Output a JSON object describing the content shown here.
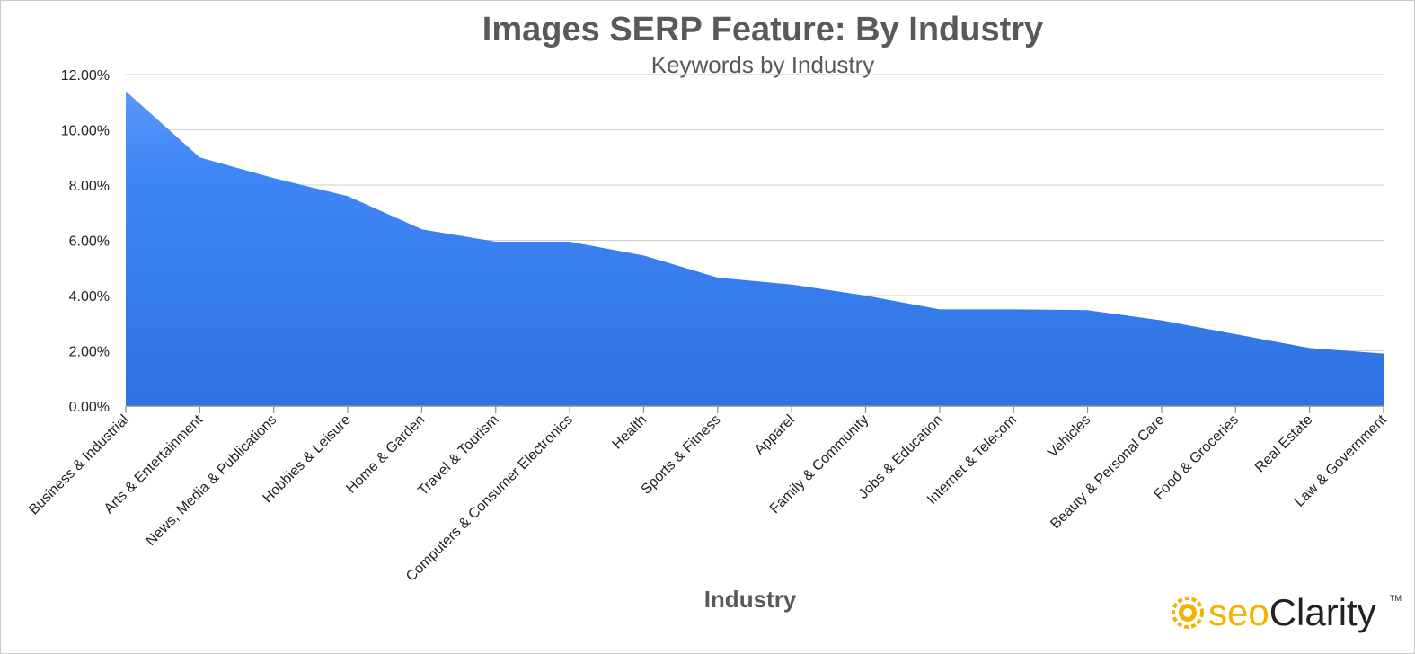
{
  "chart_data": {
    "type": "area",
    "title": "Images SERP Feature: By Industry",
    "subtitle": "Keywords by Industry",
    "xlabel": "Industry",
    "ylabel": "",
    "ylim": [
      0,
      12
    ],
    "y_tick_values": [
      0,
      2,
      4,
      6,
      8,
      10,
      12
    ],
    "y_tick_labels": [
      "0.00%",
      "2.00%",
      "4.00%",
      "6.00%",
      "8.00%",
      "10.00%",
      "12.00%"
    ],
    "grid": true,
    "legend": "none",
    "color": "#3d85f5",
    "categories": [
      "Business & Industrial",
      "Arts & Entertainment",
      "News, Media & Publications",
      "Hobbies & Leisure",
      "Home & Garden",
      "Travel & Tourism",
      "Computers & Consumer Electronics",
      "Health",
      "Sports & Fitness",
      "Apparel",
      "Family & Community",
      "Jobs & Education",
      "Internet & Telecom",
      "Vehicles",
      "Beauty & Personal Care",
      "Food & Groceries",
      "Real Estate",
      "Law & Government"
    ],
    "series": [
      {
        "values": [
          11.4,
          9.0,
          8.25,
          7.6,
          6.4,
          5.95,
          5.95,
          5.45,
          4.65,
          4.4,
          4.0,
          3.5,
          3.5,
          3.47,
          3.1,
          2.6,
          2.1,
          1.9
        ]
      }
    ]
  },
  "logo": {
    "text_seo": "seo",
    "text_clarity": "Clarity",
    "tm": "TM",
    "accent": "#f0b400"
  }
}
